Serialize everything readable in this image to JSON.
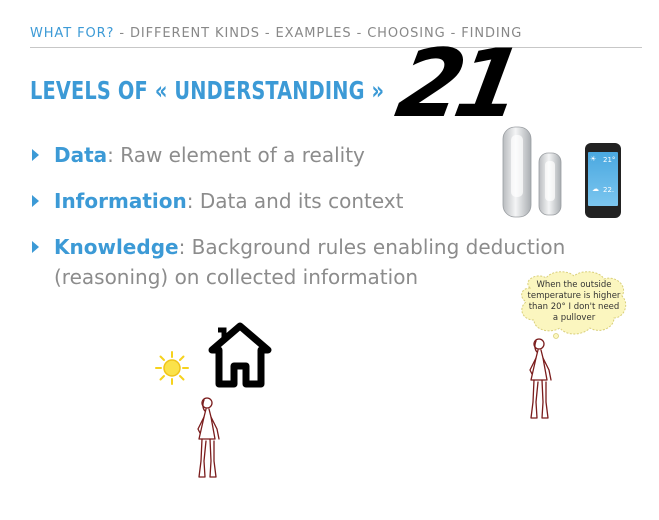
{
  "breadcrumb": {
    "active": "WHAT FOR?",
    "rest": " - DIFFERENT KINDS - EXAMPLES - CHOOSING - FINDING"
  },
  "title": "LEVELS OF « UNDERSTANDING »",
  "slide_number": "21",
  "bullets": [
    {
      "term": "Data",
      "text": ":  Raw element of a reality"
    },
    {
      "term": "Information",
      "text": ":  Data and its context"
    },
    {
      "term": "Knowledge",
      "text": ":  Background rules enabling deduction (reasoning) on collected information"
    }
  ],
  "thought_bubble": "When the outside temperature is higher than 20°  I don't need a pullover",
  "phone": {
    "temp_top": "21°",
    "temp_bottom": "22."
  },
  "colors": {
    "accent": "#3c9ad6",
    "body_text": "#8c8c8c",
    "figure_stroke": "#7a1c1c",
    "sun": "#f6d21d"
  }
}
